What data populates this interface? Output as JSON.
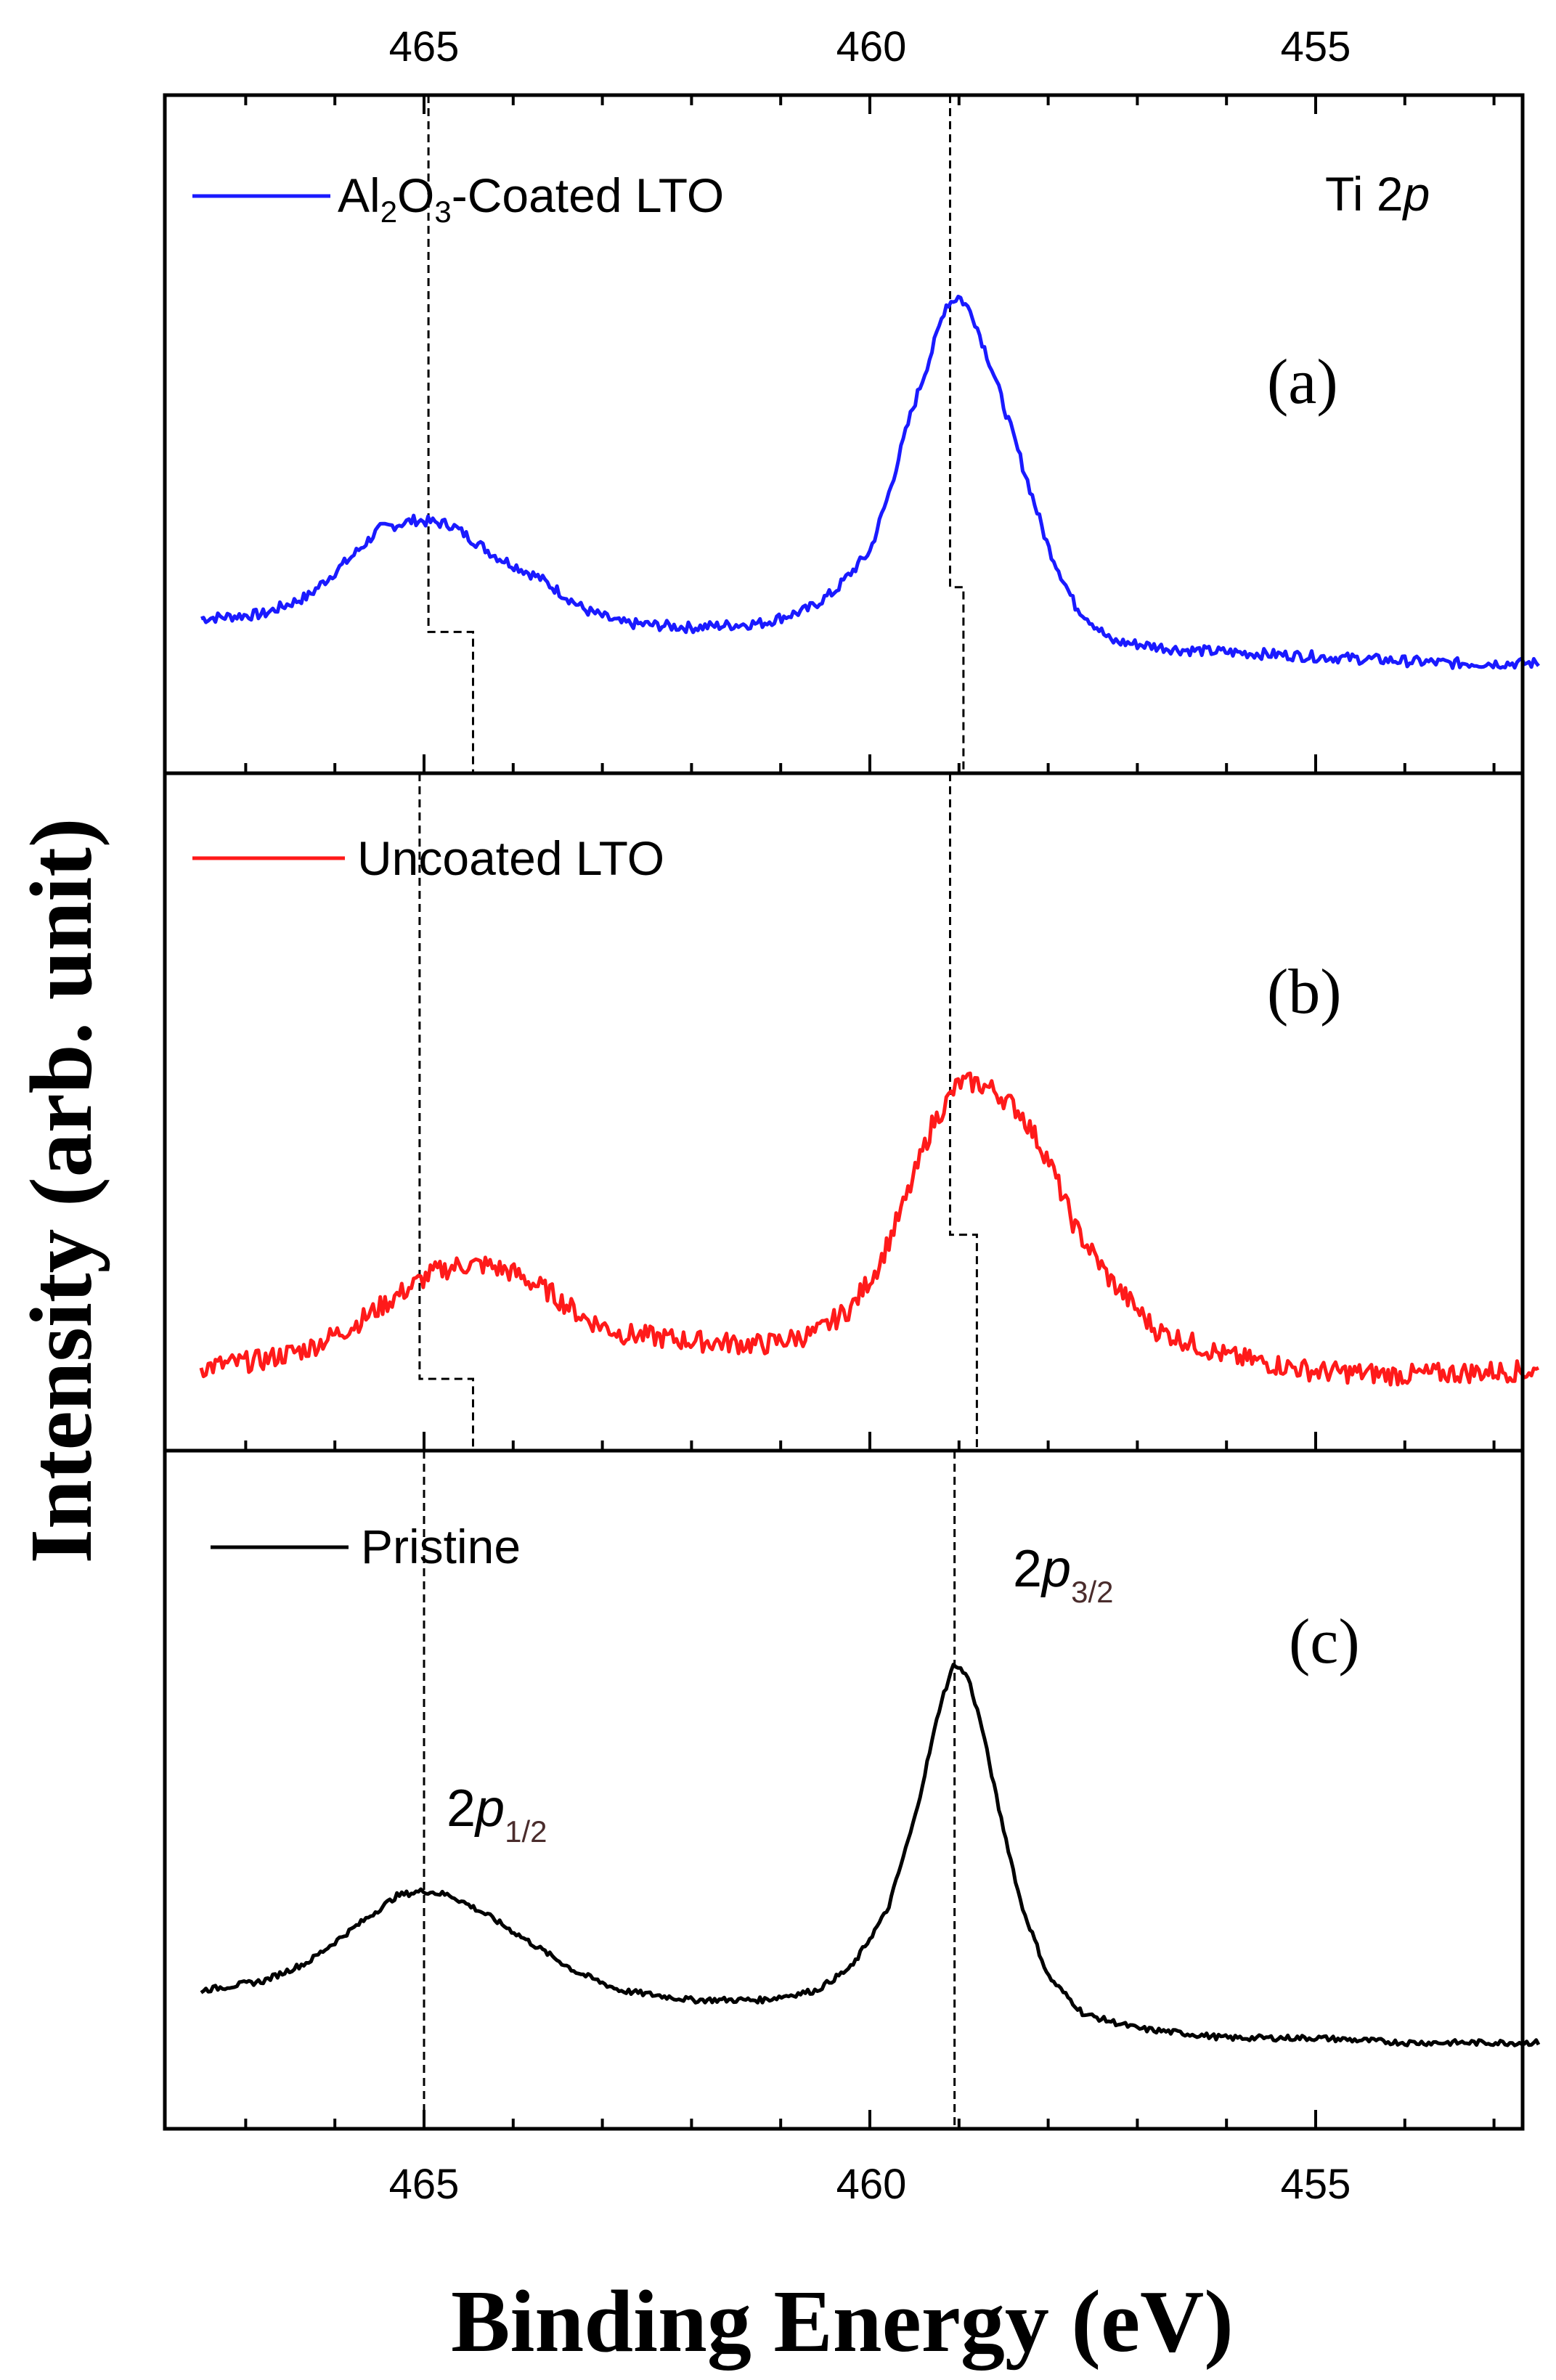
{
  "chart_data": {
    "type": "line",
    "title": "",
    "xlabel": "Binding Energy (eV)",
    "ylabel": "Intensity (arb. unit)",
    "xlim": [
      467.5,
      452.5
    ],
    "x_reversed": true,
    "xticks": [
      "465",
      "460",
      "455"
    ],
    "element_label": {
      "main": "Ti 2",
      "italic": "p"
    },
    "panels": [
      {
        "panel_label": "(a)",
        "legend": {
          "pre": "Al",
          "sub1": "2",
          "mid": "O",
          "sub2": "3",
          "post": "-Coated LTO"
        },
        "color": "#1a1aff",
        "ylim": [
          0,
          1
        ],
        "x": [
          467.5,
          466.8,
          466.3,
          465.8,
          465.5,
          465.1,
          464.7,
          464.2,
          463.7,
          463.2,
          462.8,
          462.0,
          461.2,
          460.7,
          460.4,
          460.0,
          459.8,
          459.55,
          459.3,
          459.15,
          459.0,
          458.85,
          458.6,
          458.3,
          458.0,
          457.7,
          457.3,
          456.5,
          455.5,
          454.5,
          453.5,
          452.5
        ],
        "values": [
          0.27,
          0.28,
          0.32,
          0.41,
          0.47,
          0.49,
          0.48,
          0.41,
          0.36,
          0.29,
          0.26,
          0.25,
          0.26,
          0.29,
          0.33,
          0.42,
          0.54,
          0.72,
          0.87,
          0.97,
          0.99,
          0.95,
          0.81,
          0.62,
          0.43,
          0.3,
          0.22,
          0.2,
          0.19,
          0.18,
          0.17,
          0.17
        ],
        "guide_steps": [
          {
            "x1": 464.95,
            "x2": 464.45,
            "y_break": 0.24
          },
          {
            "x1": 459.1,
            "x2": 458.95,
            "y_break": 0.34
          }
        ]
      },
      {
        "panel_label": "(b)",
        "legend": {
          "text": "Uncoated LTO"
        },
        "color": "#ff1a1a",
        "ylim": [
          0,
          1
        ],
        "x": [
          467.5,
          466.8,
          466.3,
          465.8,
          465.3,
          464.9,
          464.6,
          464.3,
          464.0,
          463.6,
          463.2,
          462.8,
          462.0,
          461.2,
          460.6,
          460.2,
          459.9,
          459.6,
          459.3,
          459.0,
          458.8,
          458.6,
          458.3,
          458.0,
          457.7,
          457.3,
          456.8,
          456.0,
          455.0,
          454.0,
          453.0,
          452.5
        ],
        "values": [
          0.13,
          0.15,
          0.18,
          0.24,
          0.32,
          0.38,
          0.4,
          0.4,
          0.38,
          0.33,
          0.26,
          0.22,
          0.2,
          0.19,
          0.22,
          0.29,
          0.4,
          0.57,
          0.77,
          0.88,
          0.88,
          0.86,
          0.8,
          0.68,
          0.5,
          0.36,
          0.23,
          0.16,
          0.12,
          0.11,
          0.12,
          0.12
        ],
        "guide_steps": [
          {
            "x1": 465.05,
            "x2": 464.45,
            "y_break": 0.1
          },
          {
            "x1": 459.1,
            "x2": 458.8,
            "y_break": 0.48
          }
        ]
      },
      {
        "panel_label": "(c)",
        "legend": {
          "text": "Pristine"
        },
        "color": "#000000",
        "ylim": [
          0,
          1
        ],
        "x": [
          467.5,
          466.8,
          466.3,
          465.8,
          465.3,
          465.0,
          464.7,
          464.3,
          463.8,
          463.3,
          462.8,
          462.0,
          461.2,
          460.6,
          460.2,
          459.8,
          459.5,
          459.2,
          459.05,
          458.9,
          458.75,
          458.55,
          458.3,
          458.0,
          457.6,
          457.0,
          456.0,
          455.0,
          454.0,
          453.0,
          452.5
        ],
        "values": [
          0.22,
          0.24,
          0.28,
          0.35,
          0.42,
          0.43,
          0.42,
          0.38,
          0.32,
          0.26,
          0.22,
          0.2,
          0.2,
          0.22,
          0.27,
          0.39,
          0.58,
          0.83,
          0.91,
          0.88,
          0.78,
          0.6,
          0.4,
          0.25,
          0.17,
          0.14,
          0.12,
          0.12,
          0.11,
          0.11,
          0.11
        ],
        "guide_lines": [
          465.0,
          459.05
        ],
        "peak_labels": [
          {
            "id": "2p1",
            "base": "2",
            "italic": "p",
            "sub": "1/2",
            "x": 463.0,
            "y": 0.53
          },
          {
            "id": "2p3",
            "base": "2",
            "italic": "p",
            "sub": "3/2",
            "x": 458.0,
            "y": 0.87
          }
        ]
      }
    ]
  }
}
